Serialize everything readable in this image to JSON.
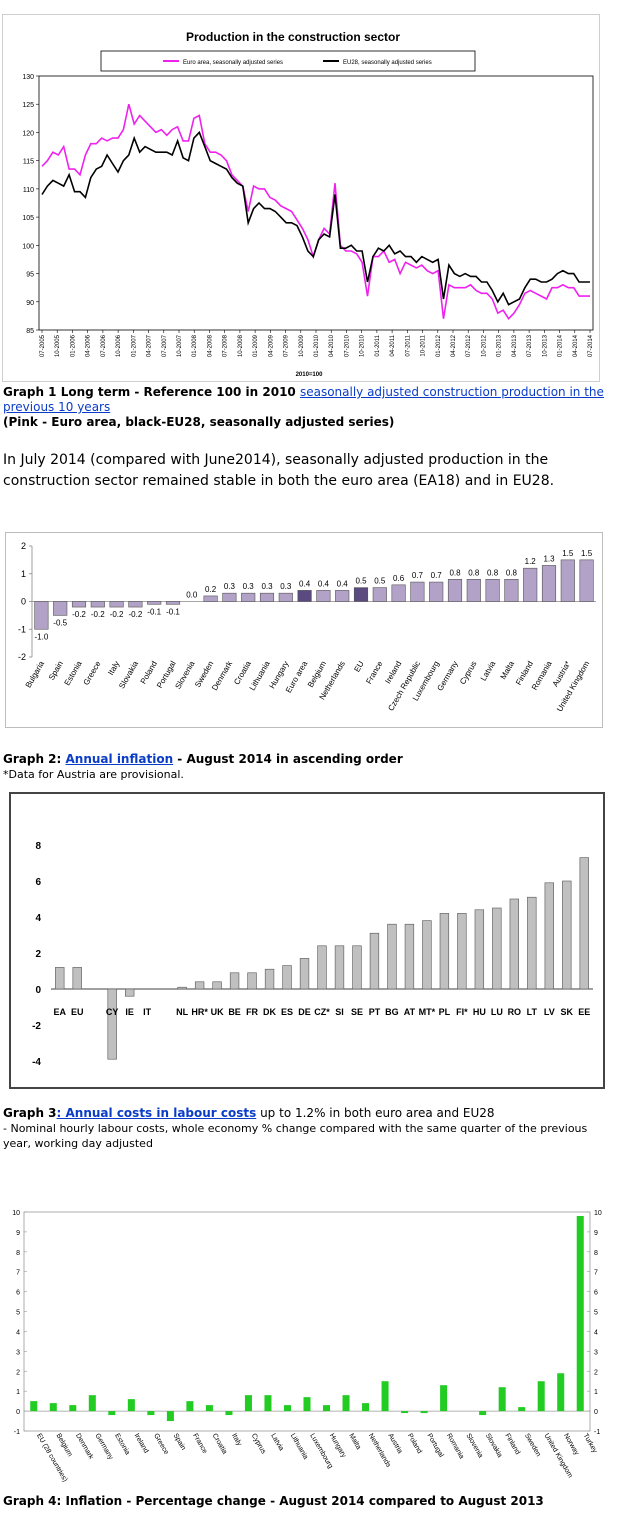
{
  "graph1": {
    "caption_lead": "Graph 1 Long term - Reference 100 in 2010 ",
    "caption_link": "seasonally adjusted construction production in the previous 10 years",
    "caption_line2": "(Pink - Euro area, black-EU28, seasonally adjusted series)"
  },
  "paragraph": "In July 2014 (compared with June2014), seasonally adjusted production in the construction sector remained stable in both the euro area (EA18) and in EU28.",
  "graph2": {
    "caption_lead": "Graph 2: ",
    "caption_link": "Annual inflation",
    "caption_tail": " - August 2014 in ascending order",
    "note": "*Data for Austria are provisional."
  },
  "graph3": {
    "caption_lead": "Graph 3",
    "caption_link": ": Annual costs in labour costs",
    "caption_tail": " up to 1.2% in both euro area and EU28",
    "note": "- Nominal hourly labour costs, whole economy % change compared with the same quarter of the previous year, working day adjusted"
  },
  "graph4": {
    "caption": "Graph 4: Inflation - Percentage change - August 2014 compared to August 2013"
  },
  "colors": {
    "pink": "#ee22ee",
    "black": "#000000",
    "purple_bar": "#b3a2c7",
    "purple_dark": "#5a4a80",
    "grey_bar": "#c0c0c0",
    "green_bar": "#22cc22",
    "link": "#0a3cc8"
  },
  "chart_data": [
    {
      "type": "line",
      "title": "Production in the construction sector",
      "xlabel": "2010=100",
      "ylim": [
        85,
        130
      ],
      "yticks": [
        85,
        90,
        95,
        100,
        105,
        110,
        115,
        120,
        125,
        130
      ],
      "x_tick_labels": [
        "07-2005",
        "10-2005",
        "01-2006",
        "04-2006",
        "07-2006",
        "10-2006",
        "01-2007",
        "04-2007",
        "07-2007",
        "10-2007",
        "01-2008",
        "04-2008",
        "07-2008",
        "10-2008",
        "01-2009",
        "04-2009",
        "07-2009",
        "10-2009",
        "01-2010",
        "04-2010",
        "07-2010",
        "10-2010",
        "01-2011",
        "04-2011",
        "07-2011",
        "10-2011",
        "01-2012",
        "04-2012",
        "07-2012",
        "10-2012",
        "01-2013",
        "04-2013",
        "07-2013",
        "10-2013",
        "01-2014",
        "04-2014",
        "07-2014"
      ],
      "legend": "top",
      "series": [
        {
          "name": "Euro area, seasonally adjusted series",
          "color": "#ee22ee",
          "values": [
            114,
            115,
            116.5,
            116,
            117.5,
            113.5,
            113.5,
            112.5,
            116,
            118,
            118,
            119,
            118.5,
            119,
            119,
            120.5,
            125,
            121.5,
            123,
            122,
            121,
            120,
            120.5,
            119.5,
            120.5,
            121,
            118.5,
            118.5,
            122.5,
            123,
            118,
            116.5,
            116.5,
            116,
            115,
            112.5,
            111.5,
            110.5,
            106,
            110.5,
            110,
            110,
            108.5,
            108,
            107,
            106.5,
            106,
            104.5,
            103,
            101,
            98,
            101,
            103,
            102,
            111,
            100,
            99,
            99,
            98.5,
            97,
            91,
            98,
            98,
            99,
            97,
            97.5,
            95,
            97,
            96.5,
            96,
            96.5,
            95.5,
            95,
            95.5,
            87,
            93,
            92.5,
            92.5,
            92.5,
            93,
            92,
            91.5,
            91.5,
            90.5,
            88,
            88.5,
            87,
            88,
            89.5,
            91.5,
            92,
            91.5,
            91,
            90.5,
            92.5,
            92.5,
            93,
            92.5,
            92.5,
            91,
            91,
            91
          ]
        },
        {
          "name": "EU28, seasonally adjusted series",
          "color": "#000000",
          "values": [
            109,
            110.5,
            111.5,
            111,
            110.5,
            112.5,
            109.5,
            109.5,
            108.5,
            112,
            113.5,
            114,
            116,
            114.5,
            113,
            115,
            116,
            119,
            116.5,
            117.5,
            117,
            116.5,
            116.5,
            116.5,
            116,
            118.5,
            115.5,
            115,
            119,
            120,
            117.5,
            115,
            114.5,
            114,
            113.5,
            112,
            111,
            110.5,
            104,
            106.5,
            107.5,
            106.5,
            106.5,
            106,
            105,
            104,
            104,
            103.5,
            101.5,
            99,
            98,
            101,
            102,
            101.5,
            109,
            99.5,
            99.5,
            100,
            99,
            99,
            93.5,
            98,
            99.5,
            99,
            100,
            98.5,
            99,
            98,
            98,
            97,
            98,
            97.5,
            97,
            97.5,
            90.5,
            96.5,
            95,
            94.5,
            95,
            94.5,
            94.5,
            93.5,
            93.5,
            92,
            90,
            91.5,
            89.5,
            90,
            90.5,
            92.5,
            94,
            94,
            93.5,
            93.5,
            94,
            95,
            95.5,
            95,
            95,
            93.5,
            93.5,
            93.5
          ]
        }
      ]
    },
    {
      "type": "bar",
      "title": "",
      "ylim": [
        -2,
        2
      ],
      "yticks": [
        -2,
        -1,
        0,
        1,
        2
      ],
      "categories": [
        "Bulgaria",
        "Spain",
        "Estonia",
        "Greece",
        "Italy",
        "Slovakia",
        "Poland",
        "Portugal",
        "Slovenia",
        "Sweden",
        "Denmark",
        "Croatia",
        "Lithuania",
        "Hungary",
        "Euro area",
        "Belgium",
        "Netherlands",
        "EU",
        "France",
        "Ireland",
        "Czech Republic",
        "Luxembourg",
        "Germany",
        "Cyprus",
        "Latvia",
        "Malta",
        "Finland",
        "Romania",
        "Austria*",
        "United Kingdom"
      ],
      "values": [
        -1.0,
        -0.5,
        -0.2,
        -0.2,
        -0.2,
        -0.2,
        -0.1,
        -0.1,
        0.0,
        0.2,
        0.3,
        0.3,
        0.3,
        0.3,
        0.4,
        0.4,
        0.4,
        0.5,
        0.5,
        0.6,
        0.7,
        0.7,
        0.8,
        0.8,
        0.8,
        0.8,
        1.2,
        1.3,
        1.5,
        1.5
      ],
      "value_labels": [
        "-1.0",
        "-0.5",
        "-0.2",
        "-0.2",
        "-0.2",
        "-0.2",
        "-0.1",
        "-0.1",
        "0.0",
        "0.2",
        "0.3",
        "0.3",
        "0.3",
        "0.3",
        "0.4",
        "0.4",
        "0.4",
        "0.5",
        "0.5",
        "0.6",
        "0.7",
        "0.7",
        "0.8",
        "0.8",
        "0.8",
        "0.8",
        "1.2",
        "1.3",
        "1.5",
        "1.5"
      ],
      "highlighted": [
        "Euro area",
        "EU"
      ]
    },
    {
      "type": "bar",
      "title": "",
      "ylim": [
        -4,
        8
      ],
      "yticks": [
        -4,
        -2,
        0,
        2,
        4,
        6,
        8
      ],
      "categories": [
        "EA",
        "EU",
        "",
        "CY",
        "IE",
        "IT",
        "",
        "NL",
        "HR*",
        "UK",
        "BE",
        "FR",
        "DK",
        "ES",
        "DE",
        "CZ*",
        "SI",
        "SE",
        "PT",
        "BG",
        "AT",
        "MT*",
        "PL",
        "FI*",
        "HU",
        "LU",
        "RO",
        "LT",
        "LV",
        "SK",
        "EE"
      ],
      "values": [
        1.2,
        1.2,
        null,
        -3.9,
        -0.4,
        0.0,
        null,
        0.1,
        0.4,
        0.4,
        0.9,
        0.9,
        1.1,
        1.3,
        1.7,
        2.4,
        2.4,
        2.4,
        3.1,
        3.6,
        3.6,
        3.8,
        4.2,
        4.2,
        4.4,
        4.5,
        5.0,
        5.1,
        5.9,
        6.0,
        7.3
      ]
    },
    {
      "type": "bar",
      "title": "",
      "ylim": [
        -1,
        10
      ],
      "yticks": [
        -1,
        0,
        1,
        2,
        3,
        4,
        5,
        6,
        7,
        8,
        9,
        10
      ],
      "categories": [
        "EU (28 countries)",
        "Belgium",
        "Denmark",
        "Germany",
        "Estonia",
        "Ireland",
        "Greece",
        "Spain",
        "France",
        "Croatia",
        "Italy",
        "Cyprus",
        "Latvia",
        "Lithuania",
        "Luxembourg",
        "Hungary",
        "Malta",
        "Netherlands",
        "Austria",
        "Poland",
        "Portugal",
        "Romania",
        "Slovenia",
        "Slovakia",
        "Finland",
        "Sweden",
        "United Kingdom",
        "Norway",
        "Turkey"
      ],
      "values": [
        0.5,
        0.4,
        0.3,
        0.8,
        -0.2,
        0.6,
        -0.2,
        -0.5,
        0.5,
        0.3,
        -0.2,
        0.8,
        0.8,
        0.3,
        0.7,
        0.3,
        0.8,
        0.4,
        1.5,
        -0.1,
        -0.1,
        1.3,
        0.0,
        -0.2,
        1.2,
        0.2,
        1.5,
        1.9,
        9.8
      ]
    }
  ]
}
